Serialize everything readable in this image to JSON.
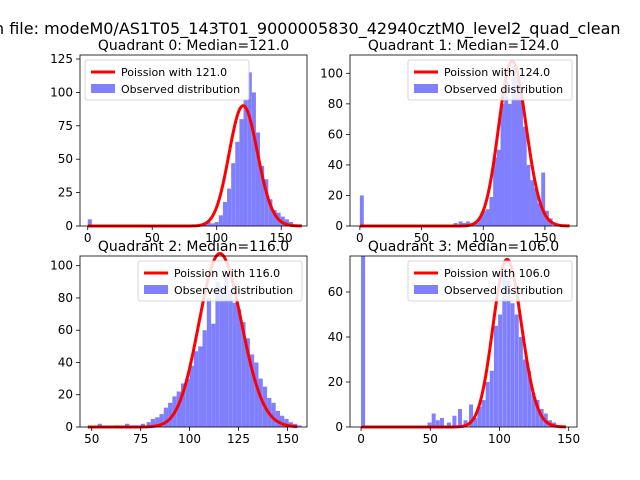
{
  "figure": {
    "suptitle": "n file: modeM0/AS1T05_143T01_9000005830_42940cztM0_level2_quad_clean"
  },
  "colors": {
    "observed": "#8080ff",
    "poisson": "#ff0000",
    "axis": "#000000"
  },
  "chart_data": [
    {
      "type": "histogram",
      "title": "Quadrant 0: Median=121.0",
      "xlim": [
        -6,
        170
      ],
      "ylim": [
        0,
        128
      ],
      "xticks": [
        0,
        50,
        100,
        150
      ],
      "yticks": [
        0,
        25,
        50,
        75,
        100,
        125
      ],
      "legend_position": "upper-left",
      "series": [
        {
          "name": "Poission with 121.0",
          "kind": "line",
          "mean": 121.0,
          "x_range": [
            0,
            166
          ]
        },
        {
          "name": "Observed distribution",
          "kind": "bars",
          "bin_width": 3.2,
          "bins": [
            {
              "x": 0,
              "h": 5
            },
            {
              "x": 88.8,
              "h": 2
            },
            {
              "x": 92,
              "h": 3
            },
            {
              "x": 95.2,
              "h": 2
            },
            {
              "x": 98.4,
              "h": 3
            },
            {
              "x": 101.6,
              "h": 8
            },
            {
              "x": 104.8,
              "h": 18
            },
            {
              "x": 108,
              "h": 28
            },
            {
              "x": 111.2,
              "h": 47
            },
            {
              "x": 114.4,
              "h": 63
            },
            {
              "x": 117.6,
              "h": 80
            },
            {
              "x": 120.8,
              "h": 95
            },
            {
              "x": 124,
              "h": 115
            },
            {
              "x": 127.2,
              "h": 100
            },
            {
              "x": 130.4,
              "h": 70
            },
            {
              "x": 133.6,
              "h": 45
            },
            {
              "x": 136.8,
              "h": 35
            },
            {
              "x": 140,
              "h": 20
            },
            {
              "x": 143.2,
              "h": 12
            },
            {
              "x": 146.4,
              "h": 10
            },
            {
              "x": 149.6,
              "h": 7
            },
            {
              "x": 152.8,
              "h": 5
            },
            {
              "x": 156,
              "h": 3
            }
          ]
        }
      ]
    },
    {
      "type": "histogram",
      "title": "Quadrant 1: Median=124.0",
      "xlim": [
        -8,
        176
      ],
      "ylim": [
        0,
        112
      ],
      "xticks": [
        0,
        50,
        100,
        150
      ],
      "yticks": [
        0,
        20,
        40,
        60,
        80,
        100
      ],
      "legend_position": "upper-right",
      "series": [
        {
          "name": "Poission with 124.0",
          "kind": "line",
          "mean": 124.0,
          "x_range": [
            0,
            170
          ]
        },
        {
          "name": "Observed distribution",
          "kind": "bars",
          "bin_width": 3.2,
          "bins": [
            {
              "x": 0,
              "h": 20
            },
            {
              "x": 76,
              "h": 2
            },
            {
              "x": 80,
              "h": 3
            },
            {
              "x": 83,
              "h": 2
            },
            {
              "x": 86,
              "h": 3
            },
            {
              "x": 93,
              "h": 2
            },
            {
              "x": 96,
              "h": 6
            },
            {
              "x": 99,
              "h": 10
            },
            {
              "x": 102,
              "h": 11
            },
            {
              "x": 105,
              "h": 19
            },
            {
              "x": 108,
              "h": 45
            },
            {
              "x": 111,
              "h": 50
            },
            {
              "x": 114,
              "h": 80
            },
            {
              "x": 117,
              "h": 95
            },
            {
              "x": 120,
              "h": 80
            },
            {
              "x": 123,
              "h": 105
            },
            {
              "x": 126,
              "h": 98
            },
            {
              "x": 129,
              "h": 85
            },
            {
              "x": 132,
              "h": 65
            },
            {
              "x": 135,
              "h": 40
            },
            {
              "x": 138,
              "h": 30
            },
            {
              "x": 141,
              "h": 25
            },
            {
              "x": 144,
              "h": 15
            },
            {
              "x": 147,
              "h": 35
            },
            {
              "x": 150,
              "h": 10
            },
            {
              "x": 153,
              "h": 5
            }
          ]
        }
      ]
    },
    {
      "type": "histogram",
      "title": "Quadrant 2: Median=116.0",
      "xlim": [
        44,
        160
      ],
      "ylim": [
        0,
        106
      ],
      "xticks": [
        50,
        75,
        100,
        125,
        150
      ],
      "yticks": [
        0,
        20,
        40,
        60,
        80,
        100
      ],
      "legend_position": "upper-right",
      "series": [
        {
          "name": "Poission with 116.0",
          "kind": "line",
          "mean": 116.0,
          "x_range": [
            48,
            155
          ]
        },
        {
          "name": "Observed distribution",
          "kind": "bars",
          "bin_width": 2.2,
          "bins": [
            {
              "x": 53,
              "h": 2
            },
            {
              "x": 62,
              "h": 1
            },
            {
              "x": 67,
              "h": 2
            },
            {
              "x": 71,
              "h": 1
            },
            {
              "x": 75,
              "h": 2
            },
            {
              "x": 78,
              "h": 3
            },
            {
              "x": 80.2,
              "h": 5
            },
            {
              "x": 82.4,
              "h": 6
            },
            {
              "x": 84.6,
              "h": 8
            },
            {
              "x": 86.8,
              "h": 12
            },
            {
              "x": 89,
              "h": 15
            },
            {
              "x": 91.2,
              "h": 19
            },
            {
              "x": 93.4,
              "h": 22
            },
            {
              "x": 95.6,
              "h": 27
            },
            {
              "x": 97.8,
              "h": 30
            },
            {
              "x": 100,
              "h": 38
            },
            {
              "x": 102.2,
              "h": 47
            },
            {
              "x": 104.4,
              "h": 50
            },
            {
              "x": 106.6,
              "h": 60
            },
            {
              "x": 108.8,
              "h": 80
            },
            {
              "x": 111,
              "h": 64
            },
            {
              "x": 113.2,
              "h": 90
            },
            {
              "x": 115.4,
              "h": 87
            },
            {
              "x": 117.6,
              "h": 93
            },
            {
              "x": 119.8,
              "h": 85
            },
            {
              "x": 122,
              "h": 77
            },
            {
              "x": 124.2,
              "h": 73
            },
            {
              "x": 126.4,
              "h": 65
            },
            {
              "x": 128.6,
              "h": 55
            },
            {
              "x": 130.8,
              "h": 45
            },
            {
              "x": 133,
              "h": 40
            },
            {
              "x": 135.2,
              "h": 30
            },
            {
              "x": 137.4,
              "h": 25
            },
            {
              "x": 139.6,
              "h": 18
            },
            {
              "x": 141.8,
              "h": 15
            },
            {
              "x": 144,
              "h": 10
            },
            {
              "x": 146.2,
              "h": 7
            },
            {
              "x": 148.4,
              "h": 5
            },
            {
              "x": 150.6,
              "h": 3
            },
            {
              "x": 152.8,
              "h": 2
            },
            {
              "x": 155,
              "h": 1
            }
          ]
        }
      ]
    },
    {
      "type": "histogram",
      "title": "Quadrant 3: Median=106.0",
      "xlim": [
        -8,
        156
      ],
      "ylim": [
        0,
        76
      ],
      "xticks": [
        0,
        50,
        100,
        150
      ],
      "yticks": [
        0,
        20,
        40,
        60
      ],
      "legend_position": "upper-right",
      "series": [
        {
          "name": "Poission with 106.0",
          "kind": "line",
          "mean": 106.0,
          "x_range": [
            0,
            148
          ]
        },
        {
          "name": "Observed distribution",
          "kind": "bars",
          "bin_width": 2.9,
          "bins": [
            {
              "x": 0,
              "h": 76
            },
            {
              "x": 48,
              "h": 2
            },
            {
              "x": 51,
              "h": 6
            },
            {
              "x": 54,
              "h": 3
            },
            {
              "x": 57,
              "h": 4
            },
            {
              "x": 62,
              "h": 2
            },
            {
              "x": 66,
              "h": 5
            },
            {
              "x": 70,
              "h": 8
            },
            {
              "x": 74,
              "h": 3
            },
            {
              "x": 78,
              "h": 10
            },
            {
              "x": 81,
              "h": 4
            },
            {
              "x": 84,
              "h": 9
            },
            {
              "x": 87,
              "h": 12
            },
            {
              "x": 90,
              "h": 20
            },
            {
              "x": 93,
              "h": 25
            },
            {
              "x": 96,
              "h": 45
            },
            {
              "x": 99,
              "h": 50
            },
            {
              "x": 102,
              "h": 68
            },
            {
              "x": 105,
              "h": 65
            },
            {
              "x": 108,
              "h": 55
            },
            {
              "x": 111,
              "h": 50
            },
            {
              "x": 114,
              "h": 40
            },
            {
              "x": 117,
              "h": 30
            },
            {
              "x": 120,
              "h": 25
            },
            {
              "x": 123,
              "h": 15
            },
            {
              "x": 126,
              "h": 12
            },
            {
              "x": 129,
              "h": 8
            },
            {
              "x": 132,
              "h": 6
            },
            {
              "x": 135,
              "h": 3
            },
            {
              "x": 138,
              "h": 2
            }
          ]
        }
      ]
    }
  ]
}
